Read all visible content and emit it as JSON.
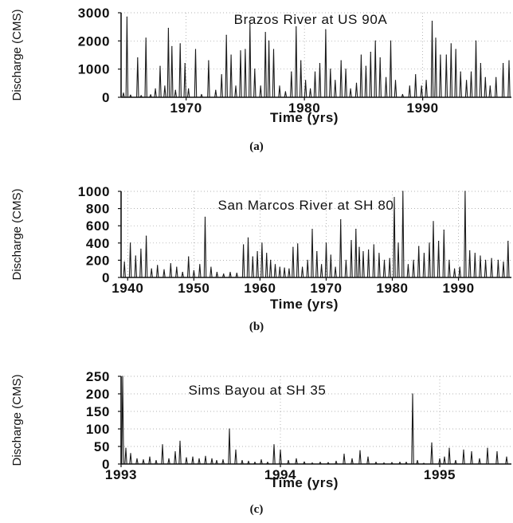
{
  "chart_data": [
    {
      "type": "line",
      "title": "Brazos River at US 90A",
      "xlabel": "Time (yrs)",
      "ylabel": "Discharge (CMS)",
      "caption": "(a)",
      "xlim": [
        1964.5,
        1997.5
      ],
      "ylim": [
        0,
        3000
      ],
      "xticks": [
        1970,
        1980,
        1990
      ],
      "yticks": [
        0,
        1000,
        2000,
        3000
      ],
      "grid": true,
      "series": [
        {
          "values_xy": [
            [
              1964.7,
              150
            ],
            [
              1965.0,
              2850
            ],
            [
              1965.3,
              80
            ],
            [
              1965.9,
              1400
            ],
            [
              1966.2,
              60
            ],
            [
              1966.6,
              2100
            ],
            [
              1967.0,
              90
            ],
            [
              1967.4,
              300
            ],
            [
              1967.8,
              1100
            ],
            [
              1968.2,
              400
            ],
            [
              1968.5,
              2450
            ],
            [
              1968.8,
              1800
            ],
            [
              1969.1,
              250
            ],
            [
              1969.5,
              1900
            ],
            [
              1969.9,
              1200
            ],
            [
              1970.2,
              300
            ],
            [
              1970.8,
              1700
            ],
            [
              1971.3,
              100
            ],
            [
              1971.9,
              1300
            ],
            [
              1972.5,
              250
            ],
            [
              1973.0,
              800
            ],
            [
              1973.4,
              2200
            ],
            [
              1973.8,
              1500
            ],
            [
              1974.2,
              400
            ],
            [
              1974.6,
              1650
            ],
            [
              1975.0,
              1700
            ],
            [
              1975.4,
              2600
            ],
            [
              1975.8,
              1000
            ],
            [
              1976.3,
              400
            ],
            [
              1976.7,
              2300
            ],
            [
              1977.0,
              2000
            ],
            [
              1977.4,
              1700
            ],
            [
              1977.9,
              400
            ],
            [
              1978.4,
              200
            ],
            [
              1978.9,
              900
            ],
            [
              1979.3,
              2500
            ],
            [
              1979.7,
              1300
            ],
            [
              1980.1,
              600
            ],
            [
              1980.5,
              300
            ],
            [
              1980.9,
              900
            ],
            [
              1981.3,
              1200
            ],
            [
              1981.8,
              2400
            ],
            [
              1982.2,
              1000
            ],
            [
              1982.6,
              600
            ],
            [
              1983.1,
              1300
            ],
            [
              1983.5,
              1000
            ],
            [
              1983.9,
              300
            ],
            [
              1984.4,
              500
            ],
            [
              1984.8,
              1500
            ],
            [
              1985.2,
              1100
            ],
            [
              1985.6,
              1600
            ],
            [
              1986.0,
              2000
            ],
            [
              1986.4,
              1400
            ],
            [
              1986.9,
              700
            ],
            [
              1987.3,
              2000
            ],
            [
              1987.7,
              600
            ],
            [
              1988.3,
              100
            ],
            [
              1988.9,
              400
            ],
            [
              1989.4,
              800
            ],
            [
              1989.9,
              400
            ],
            [
              1990.3,
              600
            ],
            [
              1990.8,
              2700
            ],
            [
              1991.1,
              2100
            ],
            [
              1991.5,
              1500
            ],
            [
              1992.0,
              1500
            ],
            [
              1992.4,
              1900
            ],
            [
              1992.8,
              1700
            ],
            [
              1993.2,
              900
            ],
            [
              1993.7,
              600
            ],
            [
              1994.1,
              900
            ],
            [
              1994.5,
              2000
            ],
            [
              1994.9,
              1200
            ],
            [
              1995.3,
              700
            ],
            [
              1995.7,
              400
            ],
            [
              1996.2,
              700
            ],
            [
              1996.8,
              1200
            ],
            [
              1997.3,
              1300
            ]
          ]
        }
      ]
    },
    {
      "type": "line",
      "title": "San Marcos River at SH 80",
      "xlabel": "Time (yrs)",
      "ylabel": "Discharge (CMS)",
      "caption": "(b)",
      "xlim": [
        1939,
        1998
      ],
      "ylim": [
        0,
        1000
      ],
      "xticks": [
        1940,
        1950,
        1960,
        1970,
        1980,
        1990
      ],
      "yticks": [
        0,
        200,
        400,
        600,
        800,
        1000
      ],
      "grid": true,
      "series": [
        {
          "values_xy": [
            [
              1939.5,
              180
            ],
            [
              1940.4,
              400
            ],
            [
              1941.2,
              250
            ],
            [
              1942.0,
              330
            ],
            [
              1942.8,
              480
            ],
            [
              1943.6,
              100
            ],
            [
              1944.5,
              140
            ],
            [
              1945.5,
              90
            ],
            [
              1946.5,
              160
            ],
            [
              1947.4,
              120
            ],
            [
              1948.3,
              60
            ],
            [
              1949.2,
              240
            ],
            [
              1950.0,
              80
            ],
            [
              1950.9,
              150
            ],
            [
              1951.7,
              700
            ],
            [
              1952.6,
              120
            ],
            [
              1953.5,
              60
            ],
            [
              1954.5,
              40
            ],
            [
              1955.5,
              60
            ],
            [
              1956.5,
              50
            ],
            [
              1957.5,
              380
            ],
            [
              1958.2,
              460
            ],
            [
              1958.9,
              240
            ],
            [
              1959.6,
              300
            ],
            [
              1960.3,
              400
            ],
            [
              1961.0,
              280
            ],
            [
              1961.6,
              200
            ],
            [
              1962.3,
              150
            ],
            [
              1963.0,
              120
            ],
            [
              1963.7,
              110
            ],
            [
              1964.4,
              100
            ],
            [
              1965.0,
              350
            ],
            [
              1965.7,
              390
            ],
            [
              1966.4,
              120
            ],
            [
              1967.2,
              200
            ],
            [
              1967.9,
              560
            ],
            [
              1968.6,
              300
            ],
            [
              1969.3,
              150
            ],
            [
              1970.0,
              400
            ],
            [
              1970.7,
              260
            ],
            [
              1971.4,
              120
            ],
            [
              1972.2,
              670
            ],
            [
              1973.0,
              200
            ],
            [
              1973.8,
              430
            ],
            [
              1974.5,
              560
            ],
            [
              1975.0,
              350
            ],
            [
              1975.6,
              300
            ],
            [
              1976.4,
              320
            ],
            [
              1977.2,
              380
            ],
            [
              1978.0,
              280
            ],
            [
              1978.8,
              200
            ],
            [
              1979.6,
              220
            ],
            [
              1980.3,
              930
            ],
            [
              1980.9,
              400
            ],
            [
              1981.6,
              1000
            ],
            [
              1982.4,
              150
            ],
            [
              1983.2,
              200
            ],
            [
              1984.0,
              360
            ],
            [
              1984.8,
              280
            ],
            [
              1985.6,
              400
            ],
            [
              1986.2,
              650
            ],
            [
              1987.0,
              420
            ],
            [
              1987.8,
              550
            ],
            [
              1988.6,
              200
            ],
            [
              1989.4,
              100
            ],
            [
              1990.2,
              120
            ],
            [
              1991.0,
              1000
            ],
            [
              1991.7,
              310
            ],
            [
              1992.5,
              280
            ],
            [
              1993.3,
              250
            ],
            [
              1994.1,
              200
            ],
            [
              1995.0,
              220
            ],
            [
              1996.0,
              200
            ],
            [
              1996.8,
              180
            ],
            [
              1997.5,
              420
            ]
          ]
        }
      ]
    },
    {
      "type": "line",
      "title": "Sims Bayou at SH 35",
      "xlabel": "Time (yrs)",
      "ylabel": "Discharge (CMS)",
      "caption": "(c)",
      "xlim": [
        1993,
        1995.45
      ],
      "ylim": [
        0,
        250
      ],
      "xticks": [
        1993,
        1994,
        1995
      ],
      "yticks": [
        0,
        50,
        100,
        150,
        200,
        250
      ],
      "grid": true,
      "series": [
        {
          "values_xy": [
            [
              1993.01,
              250
            ],
            [
              1993.03,
              45
            ],
            [
              1993.06,
              30
            ],
            [
              1993.1,
              15
            ],
            [
              1993.14,
              12
            ],
            [
              1993.18,
              20
            ],
            [
              1993.22,
              10
            ],
            [
              1993.26,
              55
            ],
            [
              1993.3,
              15
            ],
            [
              1993.34,
              35
            ],
            [
              1993.37,
              65
            ],
            [
              1993.41,
              18
            ],
            [
              1993.45,
              20
            ],
            [
              1993.49,
              15
            ],
            [
              1993.53,
              22
            ],
            [
              1993.57,
              15
            ],
            [
              1993.6,
              10
            ],
            [
              1993.64,
              12
            ],
            [
              1993.68,
              100
            ],
            [
              1993.72,
              40
            ],
            [
              1993.76,
              10
            ],
            [
              1993.8,
              8
            ],
            [
              1993.84,
              5
            ],
            [
              1993.88,
              12
            ],
            [
              1993.92,
              5
            ],
            [
              1993.96,
              55
            ],
            [
              1994.0,
              40
            ],
            [
              1994.05,
              10
            ],
            [
              1994.1,
              15
            ],
            [
              1994.15,
              6
            ],
            [
              1994.2,
              3
            ],
            [
              1994.25,
              5
            ],
            [
              1994.3,
              4
            ],
            [
              1994.35,
              8
            ],
            [
              1994.4,
              28
            ],
            [
              1994.45,
              15
            ],
            [
              1994.5,
              38
            ],
            [
              1994.55,
              20
            ],
            [
              1994.6,
              5
            ],
            [
              1994.65,
              3
            ],
            [
              1994.7,
              4
            ],
            [
              1994.75,
              5
            ],
            [
              1994.79,
              5
            ],
            [
              1994.83,
              200
            ],
            [
              1994.86,
              10
            ],
            [
              1994.9,
              2
            ],
            [
              1994.95,
              60
            ],
            [
              1995.0,
              15
            ],
            [
              1995.03,
              20
            ],
            [
              1995.06,
              45
            ],
            [
              1995.1,
              10
            ],
            [
              1995.15,
              40
            ],
            [
              1995.2,
              35
            ],
            [
              1995.25,
              15
            ],
            [
              1995.3,
              45
            ],
            [
              1995.36,
              35
            ],
            [
              1995.42,
              20
            ]
          ]
        }
      ]
    }
  ]
}
